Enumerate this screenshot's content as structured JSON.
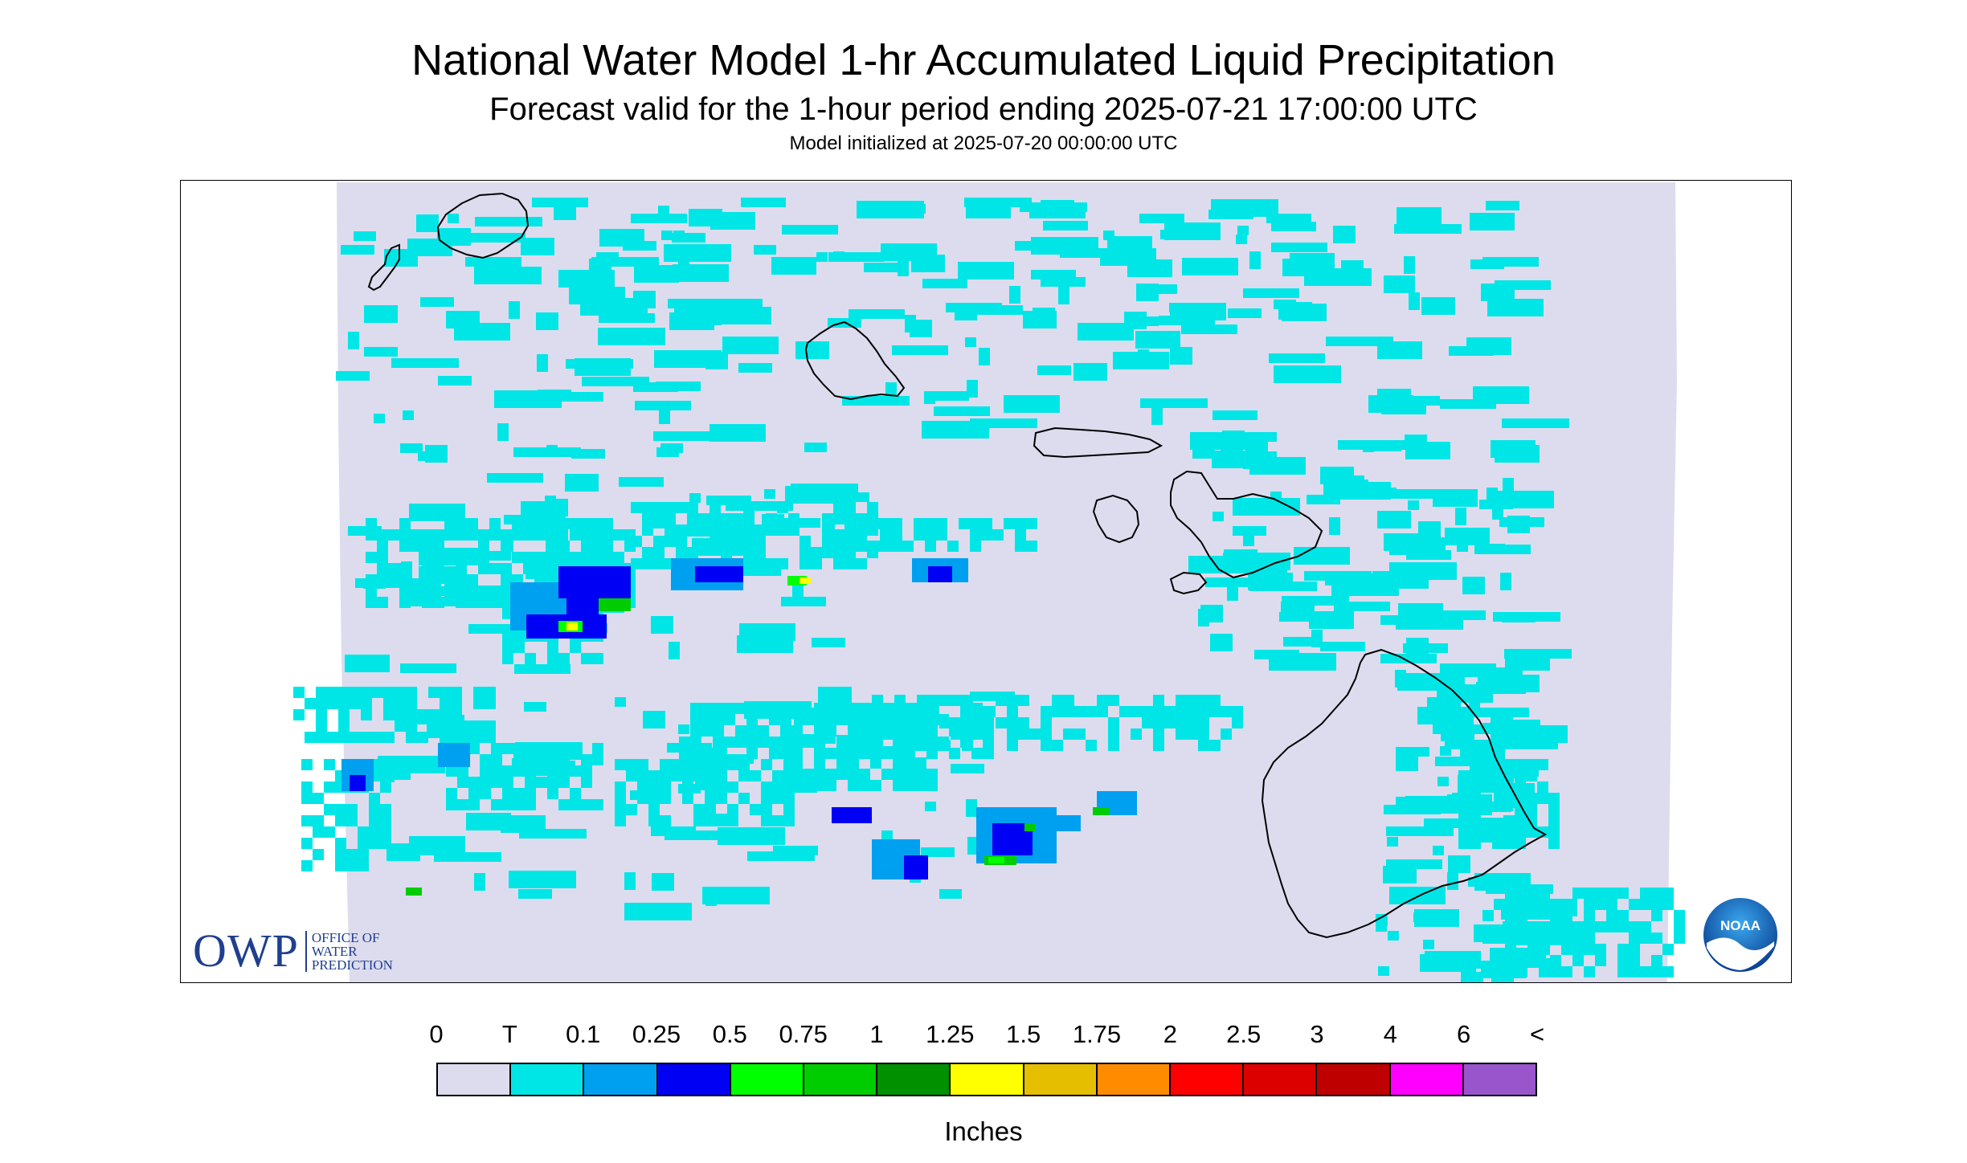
{
  "header": {
    "title": "National Water Model 1-hr Accumulated Liquid Precipitation",
    "subtitle": "Forecast valid for the 1-hour period ending 2025-07-21 17:00:00 UTC",
    "init": "Model initialized at 2025-07-20 00:00:00 UTC"
  },
  "map": {
    "background_color": "#dcdcee",
    "coastline_color": "#000000",
    "islands": [
      "Niihau",
      "Kauai",
      "Oahu",
      "Molokai",
      "Lanai",
      "Maui",
      "Kahoolawe",
      "Hawaii"
    ]
  },
  "logos": {
    "owp_letters": "OWP",
    "owp_line1": "OFFICE OF",
    "owp_line2": "WATER",
    "owp_line3": "PREDICTION",
    "noaa_text": "NOAA"
  },
  "legend": {
    "labels": [
      "0",
      "T",
      "0.1",
      "0.25",
      "0.5",
      "0.75",
      "1",
      "1.25",
      "1.5",
      "1.75",
      "2",
      "2.5",
      "3",
      "4",
      "6",
      "<"
    ],
    "colors": [
      "#dcdcee",
      "#00e6e6",
      "#00a0f0",
      "#0000f5",
      "#00ff00",
      "#00cd00",
      "#009000",
      "#ffff00",
      "#e6be00",
      "#ff8c00",
      "#ff0000",
      "#dc0000",
      "#be0000",
      "#ff00ff",
      "#9955cc"
    ],
    "units": "Inches"
  }
}
